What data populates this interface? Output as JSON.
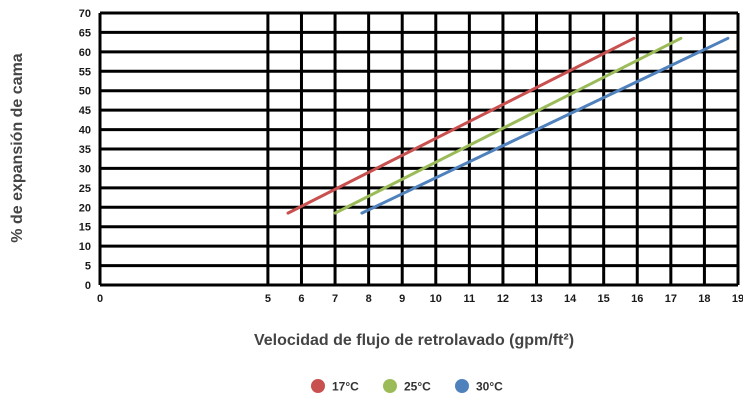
{
  "chart_data": {
    "type": "line",
    "xlabel": "Velocidad de flujo de retrolavado (gpm/ft²)",
    "ylabel": "% de expansión de cama",
    "xlim": [
      0,
      19
    ],
    "ylim": [
      0,
      70
    ],
    "x_ticks": [
      0,
      5,
      6,
      7,
      8,
      9,
      10,
      11,
      12,
      13,
      14,
      15,
      16,
      17,
      18,
      19
    ],
    "y_ticks": [
      0,
      5,
      10,
      15,
      20,
      25,
      30,
      35,
      40,
      45,
      50,
      55,
      60,
      65,
      70
    ],
    "grid": true,
    "legend_position": "bottom-center",
    "series": [
      {
        "name": "17°C",
        "color": "#c8504f",
        "x": [
          5.6,
          15.9
        ],
        "y": [
          18.5,
          63.5
        ]
      },
      {
        "name": "25°C",
        "color": "#9bbb59",
        "x": [
          7.0,
          17.3
        ],
        "y": [
          18.5,
          63.5
        ]
      },
      {
        "name": "30°C",
        "color": "#4f81bd",
        "x": [
          7.8,
          18.7
        ],
        "y": [
          18.5,
          63.5
        ]
      }
    ]
  }
}
